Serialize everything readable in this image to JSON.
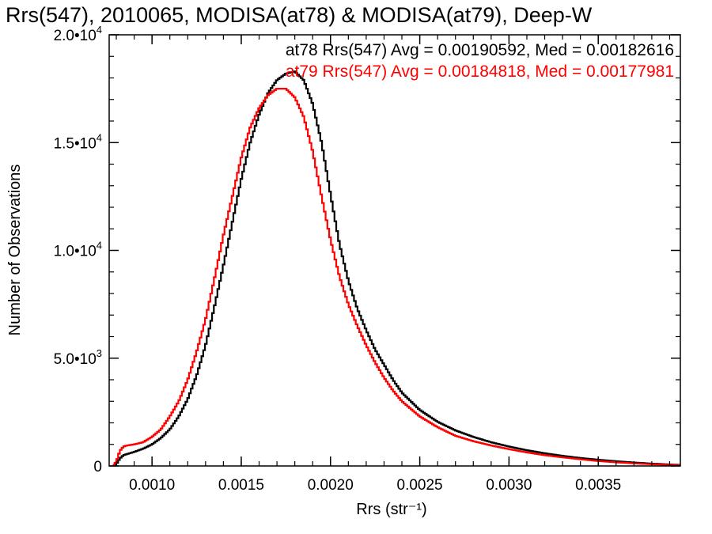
{
  "chart_data": {
    "type": "line",
    "title": "Rrs(547), 2010065, MODISA(at78) & MODISA(at79), Deep-W",
    "xlabel": "Rrs (str⁻¹)",
    "ylabel": "Number of Observations",
    "xlim": [
      0.00076,
      0.00396
    ],
    "ylim": [
      0,
      20000
    ],
    "x_ticks": [
      {
        "value": 0.001,
        "label": "0.0010"
      },
      {
        "value": 0.0015,
        "label": "0.0015"
      },
      {
        "value": 0.002,
        "label": "0.0020"
      },
      {
        "value": 0.0025,
        "label": "0.0025"
      },
      {
        "value": 0.003,
        "label": "0.0030"
      },
      {
        "value": 0.0035,
        "label": "0.0035"
      }
    ],
    "y_ticks": [
      {
        "value": 0,
        "base": "0",
        "exp": ""
      },
      {
        "value": 5000,
        "base": "5.0•10",
        "exp": "3"
      },
      {
        "value": 10000,
        "base": "1.0•10",
        "exp": "4"
      },
      {
        "value": 15000,
        "base": "1.5•10",
        "exp": "4"
      },
      {
        "value": 20000,
        "base": "2.0•10",
        "exp": "4"
      }
    ],
    "legend": [
      {
        "text": "at78 Rrs(547) Avg = 0.00190592, Med = 0.00182616",
        "color": "#000000"
      },
      {
        "text": "at79 Rrs(547) Avg = 0.00184818, Med = 0.00177981",
        "color": "#ff0000"
      }
    ],
    "legend_position": "top-right",
    "series": [
      {
        "color": "#000000",
        "x": [
          0.00078,
          0.0008,
          0.00082,
          0.00084,
          0.00086,
          0.0009,
          0.00095,
          0.001,
          0.00105,
          0.0011,
          0.00115,
          0.0012,
          0.00125,
          0.0013,
          0.00135,
          0.0014,
          0.00145,
          0.0015,
          0.00155,
          0.0016,
          0.00165,
          0.0017,
          0.00175,
          0.0018,
          0.00185,
          0.0019,
          0.00195,
          0.002,
          0.00205,
          0.0021,
          0.00215,
          0.0022,
          0.00225,
          0.0023,
          0.00235,
          0.0024,
          0.0025,
          0.0026,
          0.0027,
          0.0028,
          0.0029,
          0.003,
          0.0031,
          0.0032,
          0.0033,
          0.0034,
          0.0035,
          0.0036,
          0.0037,
          0.0038,
          0.0039,
          0.00396
        ],
        "y": [
          0,
          80,
          350,
          500,
          550,
          650,
          800,
          1000,
          1300,
          1700,
          2300,
          3100,
          4200,
          5600,
          7400,
          9300,
          11300,
          13300,
          15000,
          16300,
          17300,
          17900,
          18200,
          18300,
          17900,
          16800,
          15000,
          12600,
          10300,
          8600,
          7300,
          6300,
          5400,
          4700,
          4000,
          3400,
          2600,
          2050,
          1650,
          1350,
          1100,
          900,
          730,
          590,
          470,
          370,
          290,
          220,
          160,
          110,
          70,
          50
        ]
      },
      {
        "color": "#ff0000",
        "x": [
          0.00078,
          0.0008,
          0.00082,
          0.00084,
          0.00086,
          0.0009,
          0.00095,
          0.001,
          0.00105,
          0.0011,
          0.00115,
          0.0012,
          0.00125,
          0.0013,
          0.00135,
          0.0014,
          0.00145,
          0.0015,
          0.00155,
          0.0016,
          0.00165,
          0.0017,
          0.00175,
          0.0018,
          0.00185,
          0.0019,
          0.00195,
          0.002,
          0.00205,
          0.0021,
          0.00215,
          0.0022,
          0.00225,
          0.0023,
          0.00235,
          0.0024,
          0.0025,
          0.0026,
          0.0027,
          0.0028,
          0.0029,
          0.003,
          0.0031,
          0.0032,
          0.0033,
          0.0034,
          0.0035,
          0.0036,
          0.0037,
          0.0038,
          0.0039,
          0.00396
        ],
        "y": [
          0,
          200,
          700,
          900,
          950,
          1000,
          1100,
          1350,
          1700,
          2300,
          3000,
          4000,
          5300,
          6800,
          8700,
          10700,
          12500,
          14300,
          15700,
          16600,
          17200,
          17500,
          17500,
          17100,
          16200,
          14600,
          12500,
          10500,
          8800,
          7500,
          6500,
          5600,
          4800,
          4100,
          3500,
          3000,
          2300,
          1800,
          1400,
          1150,
          950,
          780,
          630,
          500,
          400,
          310,
          230,
          170,
          120,
          80,
          50,
          40
        ]
      }
    ],
    "grid": false
  }
}
